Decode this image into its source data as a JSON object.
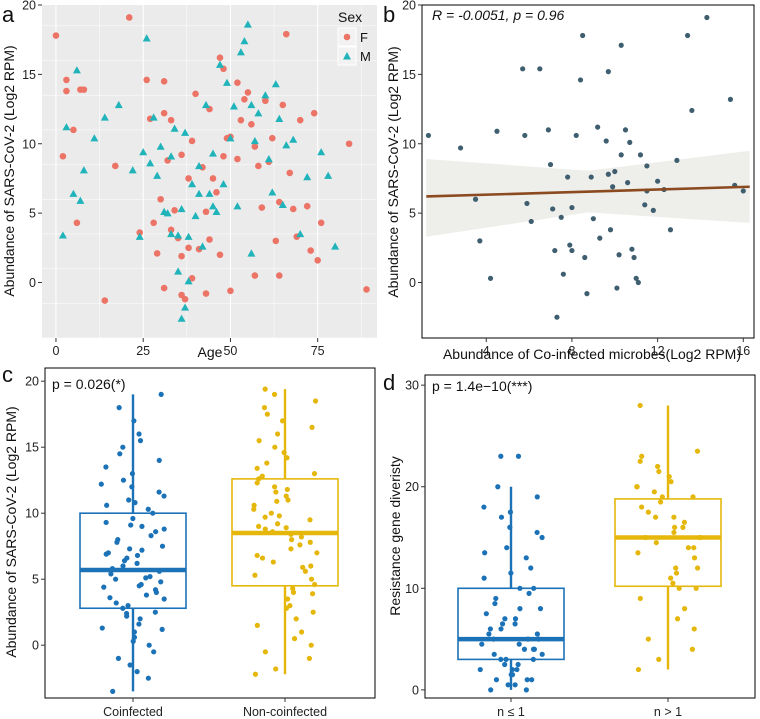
{
  "colors": {
    "female": "#ec7467",
    "male": "#20b3ba",
    "scatter_b": "#3f5f70",
    "fit_line": "#8b4a1f",
    "coinfected": "#1c72b7",
    "noncoinfected": "#e5b70b",
    "panel_bg": "#ebebeb"
  },
  "chart_data": [
    {
      "panel": "a",
      "type": "scatter",
      "xlabel": "Age",
      "ylabel": "Abundance of SARS-CoV-2 (Log2 RPM)",
      "xlim": [
        -4,
        92
      ],
      "ylim": [
        -4,
        20
      ],
      "xticks": [
        0,
        25,
        50,
        75
      ],
      "yticks": [
        0,
        5,
        10,
        15,
        20
      ],
      "legend": {
        "title": "Sex",
        "items": [
          "F",
          "M"
        ],
        "position": "top-right"
      },
      "series": [
        {
          "name": "F",
          "marker": "circle",
          "points": [
            [
              0,
              17.8
            ],
            [
              2,
              9.1
            ],
            [
              3,
              14.6
            ],
            [
              3,
              13.8
            ],
            [
              5,
              11
            ],
            [
              6,
              4.3
            ],
            [
              7,
              13.9
            ],
            [
              8,
              13.9
            ],
            [
              14,
              -1.3
            ],
            [
              17,
              8.4
            ],
            [
              21,
              19.1
            ],
            [
              24,
              3.6
            ],
            [
              26,
              14.6
            ],
            [
              27,
              11.8
            ],
            [
              28,
              4.3
            ],
            [
              29,
              2.1
            ],
            [
              30,
              6
            ],
            [
              31,
              14.5
            ],
            [
              31,
              12.2
            ],
            [
              32,
              8.8
            ],
            [
              33,
              11.7
            ],
            [
              33,
              3.8
            ],
            [
              34,
              5.2
            ],
            [
              35,
              3.2
            ],
            [
              36,
              9.2
            ],
            [
              36,
              1.9
            ],
            [
              37,
              -1.2
            ],
            [
              38,
              7.5
            ],
            [
              38,
              2.5
            ],
            [
              39,
              10.2
            ],
            [
              40,
              13.6
            ],
            [
              42,
              8.3
            ],
            [
              43,
              5.1
            ],
            [
              43,
              -0.8
            ],
            [
              44,
              3.1
            ],
            [
              45,
              7.5
            ],
            [
              46,
              6.5
            ],
            [
              47,
              16.2
            ],
            [
              47,
              2
            ],
            [
              48,
              9.1
            ],
            [
              48,
              15.4
            ],
            [
              49,
              10.4
            ],
            [
              50,
              10.5
            ],
            [
              50,
              -0.6
            ],
            [
              52,
              14.4
            ],
            [
              53,
              11.7
            ],
            [
              54,
              13.2
            ],
            [
              55,
              13.7
            ],
            [
              56,
              11.4
            ],
            [
              57,
              9.8
            ],
            [
              58,
              8.4
            ],
            [
              59,
              5.4
            ],
            [
              60,
              13.1
            ],
            [
              61,
              8.7
            ],
            [
              62,
              10.4
            ],
            [
              63,
              3
            ],
            [
              64,
              0.5
            ],
            [
              64,
              5.8
            ],
            [
              65,
              12.8
            ],
            [
              66,
              17.9
            ],
            [
              67,
              7.9
            ],
            [
              68,
              5.3
            ],
            [
              69,
              3.3
            ],
            [
              70,
              11.7
            ],
            [
              72,
              5.5
            ],
            [
              73,
              2.3
            ],
            [
              74,
              12.2
            ],
            [
              75,
              1.6
            ],
            [
              76,
              4.3
            ],
            [
              84,
              10
            ],
            [
              89,
              -0.5
            ],
            [
              39,
              0.3
            ],
            [
              41,
              2.4
            ],
            [
              44,
              12.5
            ],
            [
              57,
              0.5
            ],
            [
              52,
              8.9
            ],
            [
              36,
              -0.9
            ],
            [
              31,
              -0.4
            ]
          ]
        },
        {
          "name": "M",
          "marker": "triangle",
          "points": [
            [
              2,
              3.4
            ],
            [
              3,
              11.2
            ],
            [
              5,
              6.4
            ],
            [
              6,
              15.3
            ],
            [
              7,
              5.9
            ],
            [
              8,
              8.1
            ],
            [
              11,
              10.4
            ],
            [
              14,
              11.9
            ],
            [
              18,
              12.8
            ],
            [
              22,
              8.1
            ],
            [
              24,
              3.3
            ],
            [
              25,
              9.4
            ],
            [
              26,
              17.6
            ],
            [
              27,
              8.6
            ],
            [
              28,
              11.9
            ],
            [
              29,
              7.7
            ],
            [
              30,
              9.8
            ],
            [
              31,
              5.1
            ],
            [
              32,
              5
            ],
            [
              33,
              3.5
            ],
            [
              34,
              11.1
            ],
            [
              35,
              3.4
            ],
            [
              35,
              0.8
            ],
            [
              36,
              5.3
            ],
            [
              37,
              10.8
            ],
            [
              38,
              3.3
            ],
            [
              38,
              0.1
            ],
            [
              39,
              7.1
            ],
            [
              40,
              4.8
            ],
            [
              41,
              6.4
            ],
            [
              42,
              2.6
            ],
            [
              43,
              12.8
            ],
            [
              44,
              6.4
            ],
            [
              45,
              5.5
            ],
            [
              46,
              5.1
            ],
            [
              47,
              15.7
            ],
            [
              48,
              7.1
            ],
            [
              49,
              14.4
            ],
            [
              50,
              10.4
            ],
            [
              51,
              12.7
            ],
            [
              52,
              5.5
            ],
            [
              53,
              16.6
            ],
            [
              54,
              17.4
            ],
            [
              55,
              18.6
            ],
            [
              56,
              12.8
            ],
            [
              57,
              10.2
            ],
            [
              58,
              12.2
            ],
            [
              60,
              13.5
            ],
            [
              61,
              8.9
            ],
            [
              62,
              6.5
            ],
            [
              63,
              14.3
            ],
            [
              64,
              11.8
            ],
            [
              65,
              5.6
            ],
            [
              66,
              9.9
            ],
            [
              68,
              10.3
            ],
            [
              70,
              3.5
            ],
            [
              72,
              7.6
            ],
            [
              76,
              9.4
            ],
            [
              78,
              7.7
            ],
            [
              80,
              2.6
            ],
            [
              36,
              -2.6
            ],
            [
              37,
              -1.8
            ],
            [
              33,
              9.1
            ],
            [
              41,
              8.4
            ],
            [
              56,
              2.1
            ],
            [
              45,
              9.3
            ]
          ]
        }
      ]
    },
    {
      "panel": "b",
      "type": "scatter",
      "annotation": "R = -0.0051, p = 0.96",
      "xlabel": "Abundance of Co-infected microbes(Log2 RPM)",
      "ylabel": "Abundance of SARS-CoV-2 (Log2 RPM)",
      "xlim": [
        1,
        16.5
      ],
      "ylim": [
        -4,
        20
      ],
      "xticks": [
        4,
        8,
        12,
        16
      ],
      "yticks": [
        0,
        5,
        10,
        15,
        20
      ],
      "fit": {
        "x": [
          1.2,
          16.3
        ],
        "y": [
          6.2,
          6.9
        ],
        "ci_low": [
          3.3,
          4.3
        ],
        "ci_high": [
          8.9,
          9.5
        ]
      },
      "points": [
        [
          1.3,
          10.6
        ],
        [
          2.8,
          9.7
        ],
        [
          3.5,
          6
        ],
        [
          3.7,
          3
        ],
        [
          4.2,
          0.3
        ],
        [
          4.5,
          10.9
        ],
        [
          5.7,
          15.4
        ],
        [
          5.8,
          10.6
        ],
        [
          5.9,
          5.7
        ],
        [
          6.1,
          4.4
        ],
        [
          6.5,
          15.4
        ],
        [
          6.9,
          11
        ],
        [
          7,
          8.5
        ],
        [
          7.1,
          5.3
        ],
        [
          7.2,
          2.3
        ],
        [
          7.3,
          -2.5
        ],
        [
          7.5,
          4.7
        ],
        [
          7.6,
          0.6
        ],
        [
          7.8,
          7.6
        ],
        [
          7.9,
          2.7
        ],
        [
          8,
          2.3
        ],
        [
          8,
          5.4
        ],
        [
          8.2,
          10.6
        ],
        [
          8.4,
          14.6
        ],
        [
          8.5,
          17.8
        ],
        [
          8.6,
          1.8
        ],
        [
          8.7,
          -0.8
        ],
        [
          8.9,
          7.6
        ],
        [
          9,
          4.6
        ],
        [
          9.2,
          11.2
        ],
        [
          9.3,
          3.2
        ],
        [
          9.6,
          10.2
        ],
        [
          9.7,
          7.8
        ],
        [
          9.7,
          15.2
        ],
        [
          9.8,
          3.8
        ],
        [
          9.9,
          6.9
        ],
        [
          10,
          8
        ],
        [
          10.1,
          -0.4
        ],
        [
          10.2,
          2
        ],
        [
          10.3,
          9.2
        ],
        [
          10.3,
          17.1
        ],
        [
          10.5,
          11
        ],
        [
          10.6,
          7.2
        ],
        [
          10.7,
          10.1
        ],
        [
          10.8,
          2.4
        ],
        [
          10.9,
          1.8
        ],
        [
          11,
          0.3
        ],
        [
          11.1,
          0
        ],
        [
          11.2,
          9.2
        ],
        [
          11.4,
          5.6
        ],
        [
          11.5,
          6.6
        ],
        [
          11.5,
          8.4
        ],
        [
          11.8,
          5.2
        ],
        [
          12,
          7.3
        ],
        [
          12.3,
          6.7
        ],
        [
          12.6,
          3.8
        ],
        [
          12.9,
          8.8
        ],
        [
          13.4,
          17.8
        ],
        [
          13.6,
          12.4
        ],
        [
          14.3,
          19.1
        ],
        [
          15.4,
          13.2
        ],
        [
          15.6,
          7
        ],
        [
          16,
          6.6
        ]
      ]
    },
    {
      "panel": "c",
      "type": "box",
      "annotation": "p = 0.026(*)",
      "ylabel": "Abundance of SARS-CoV-2 (Log2 RPM)",
      "categories": [
        "Coinfected",
        "Non-coinfected"
      ],
      "ylim": [
        -4,
        21
      ],
      "yticks": [
        0,
        5,
        10,
        15,
        20
      ],
      "boxes": [
        {
          "name": "Coinfected",
          "min": -3.5,
          "q1": 2.8,
          "median": 5.7,
          "q3": 10,
          "max": 19,
          "points": [
            -3.5,
            -2.5,
            -2,
            -1.5,
            -1,
            -0.5,
            0,
            0.3,
            0.6,
            1,
            1.3,
            1.6,
            2,
            2.2,
            2.5,
            2.8,
            3,
            3.2,
            3.5,
            3.8,
            4,
            4.2,
            4.4,
            4.6,
            4.8,
            5,
            5.2,
            5.4,
            5.6,
            5.8,
            6,
            6.2,
            6.4,
            6.6,
            6.8,
            7,
            7.2,
            7.5,
            7.8,
            8,
            8.3,
            8.6,
            9,
            9.3,
            9.6,
            10,
            10.3,
            10.6,
            11,
            11.3,
            11.6,
            12,
            12.5,
            13,
            13.5,
            14,
            14.5,
            15,
            15.5,
            16,
            17,
            18,
            19,
            1.2,
            3.6,
            5.1,
            6.9,
            8.8,
            10.8,
            2.4,
            4.5,
            7.3,
            9.1,
            12.2
          ]
        },
        {
          "name": "Non-coinfected",
          "min": -2.2,
          "q1": 4.5,
          "median": 8.5,
          "q3": 12.6,
          "max": 19.4,
          "points": [
            -2.2,
            -1.8,
            -1,
            -0.5,
            0,
            0.5,
            1,
            1.5,
            2,
            2.5,
            3,
            3.5,
            4,
            4.3,
            4.6,
            5,
            5.3,
            5.6,
            6,
            6.3,
            6.6,
            7,
            7.3,
            7.6,
            8,
            8.2,
            8.4,
            8.6,
            8.8,
            9,
            9.2,
            9.5,
            9.8,
            10,
            10.3,
            10.6,
            11,
            11.3,
            11.6,
            12,
            12.3,
            12.6,
            13,
            13.4,
            13.8,
            14.2,
            14.6,
            15,
            15.5,
            16,
            16.5,
            17,
            17.5,
            18,
            18.5,
            19,
            19.4,
            2.8,
            6.8,
            8.9,
            10.9,
            12.8,
            5.9,
            9.7,
            11.8,
            7.8,
            3.9
          ]
        }
      ]
    },
    {
      "panel": "d",
      "type": "box",
      "annotation": "p = 1.4e−10(***)",
      "ylabel": "Resistance gene diveristy",
      "categories": [
        "n ≤ 1",
        "n > 1"
      ],
      "ylim": [
        -0.8,
        31
      ],
      "yticks": [
        0,
        10,
        20,
        30
      ],
      "boxes": [
        {
          "name": "n ≤ 1",
          "min": 0,
          "q1": 3,
          "median": 5,
          "q3": 10,
          "max": 20,
          "points": [
            0,
            0,
            0.5,
            0.5,
            1,
            1,
            1,
            1.5,
            1.5,
            2,
            2,
            2,
            2.5,
            2.5,
            3,
            3,
            3,
            3.5,
            3.5,
            4,
            4,
            4,
            4.5,
            4.5,
            5,
            5,
            5,
            5.5,
            5.5,
            6,
            6,
            6.5,
            6.5,
            7,
            7,
            7.5,
            8,
            8,
            8.5,
            9,
            9.5,
            10,
            10,
            11,
            11.5,
            12,
            13,
            13.5,
            14,
            15,
            15.5,
            16,
            17,
            17.5,
            18,
            19,
            20,
            23,
            23
          ]
        },
        {
          "name": "n > 1",
          "min": 2,
          "q1": 10.2,
          "median": 15,
          "q3": 18.8,
          "max": 28,
          "points": [
            2,
            3,
            4,
            5,
            6,
            7,
            8,
            9,
            10,
            10,
            10.5,
            11,
            11.5,
            12,
            12,
            13,
            13.5,
            14,
            14,
            14.5,
            15,
            15,
            15.5,
            16,
            16,
            16.5,
            17,
            17,
            17.5,
            18,
            18.5,
            19,
            19,
            19.5,
            20,
            20,
            20.5,
            21,
            21.5,
            22,
            22.5,
            23,
            23.5,
            28
          ]
        }
      ]
    }
  ]
}
